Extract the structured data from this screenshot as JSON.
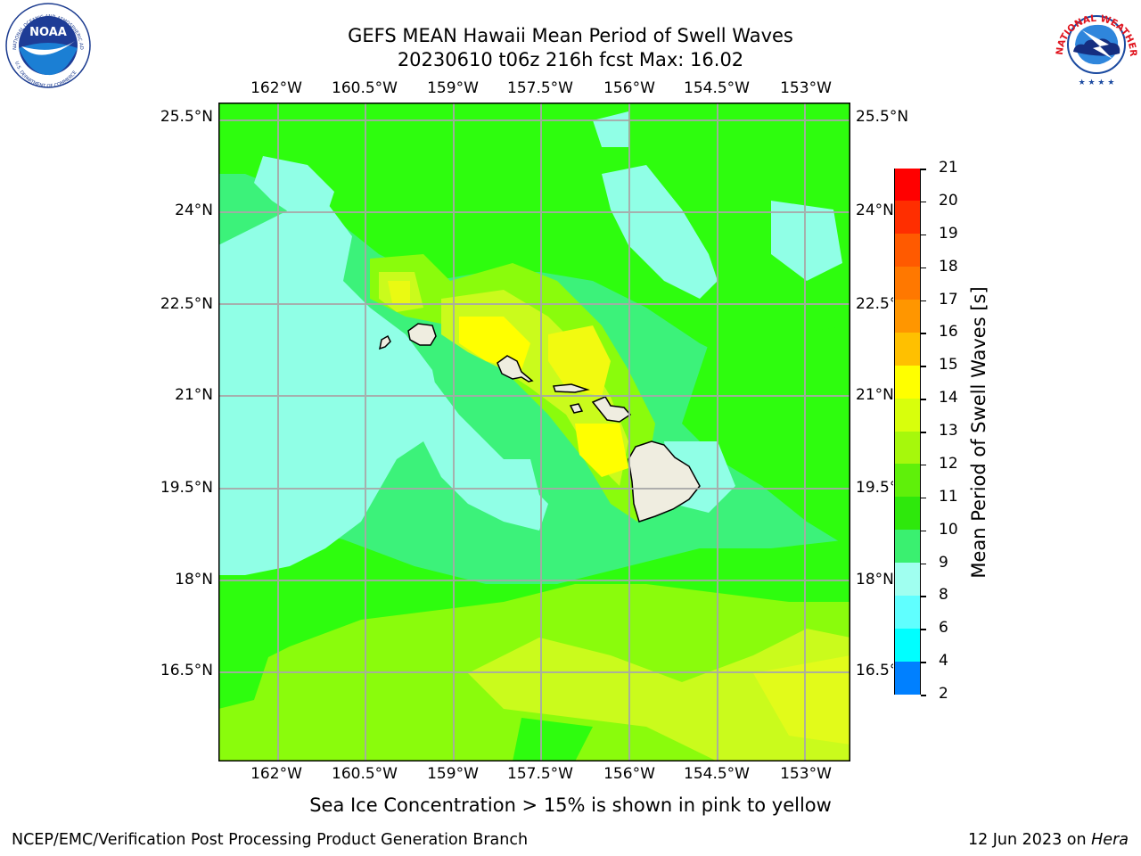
{
  "header": {
    "title_line1": "GEFS MEAN Hawaii Mean Period of Swell Waves",
    "title_line2": "20230610 t06z 216h fcst   Max: 16.02"
  },
  "map": {
    "lon_labels": [
      "162°W",
      "160.5°W",
      "159°W",
      "157.5°W",
      "156°W",
      "154.5°W",
      "153°W"
    ],
    "lat_labels": [
      "25.5°N",
      "24°N",
      "22.5°N",
      "21°N",
      "19.5°N",
      "18°N",
      "16.5°N"
    ],
    "colors": {
      "c9_10": "#90ffe6",
      "c10_11": "#3cf27a",
      "c11_12": "#2efd0e",
      "c12_13": "#8afc0c",
      "c13_14": "#cafb1c",
      "c14_15": "#eafa12",
      "c15_16": "#ffff00",
      "land": "#efede0",
      "grid": "#a8a8a8"
    }
  },
  "colorbar": {
    "label": "Mean Period of Swell Waves [s]",
    "ticks": [
      "21",
      "20",
      "19",
      "18",
      "17",
      "16",
      "15",
      "14",
      "13",
      "12",
      "11",
      "10",
      "9",
      "8",
      "6",
      "4",
      "2"
    ],
    "colors": [
      "#ff0000",
      "#ff2e00",
      "#ff5a00",
      "#ff7800",
      "#ff9600",
      "#ffc000",
      "#ffff00",
      "#d8ff0c",
      "#a6f80c",
      "#5ff00a",
      "#2ee80c",
      "#3af070",
      "#a0fff0",
      "#60ffff",
      "#00ffff",
      "#0080ff",
      "#0000ff"
    ]
  },
  "caption": "Sea Ice Concentration > 15% is shown in pink to yellow",
  "footer": {
    "left": "NCEP/EMC/Verification Post Processing Product Generation Branch",
    "right_date": "12 Jun 2023 on ",
    "right_host": "Hera"
  },
  "logos": {
    "noaa_text": "NOAA",
    "noaa_ring": "NATIONAL OCEANIC AND ATMOSPHERIC ADMINISTRATION",
    "noaa_ring_bottom": "U.S. DEPARTMENT OF COMMERCE",
    "nws_ring": "NATIONAL WEATHER SERVICE"
  }
}
